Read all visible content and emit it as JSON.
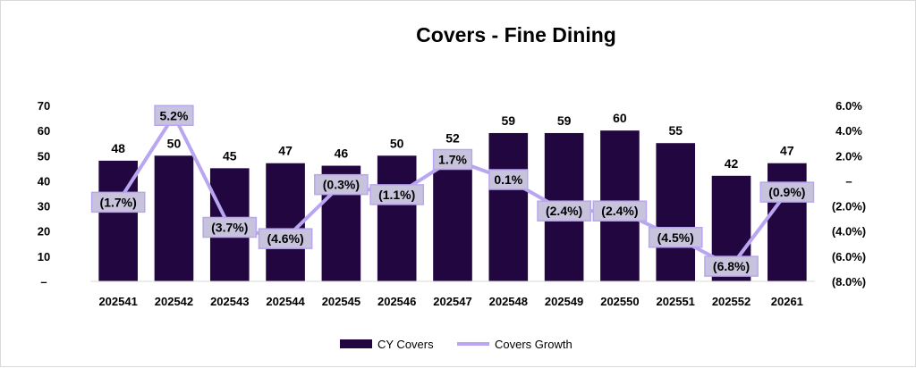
{
  "chart_data": {
    "type": "bar",
    "title": "Covers - Fine Dining",
    "categories": [
      "202541",
      "202542",
      "202543",
      "202544",
      "202545",
      "202546",
      "202547",
      "202548",
      "202549",
      "202550",
      "202551",
      "202552",
      "20261"
    ],
    "series": [
      {
        "name": "CY Covers",
        "type": "bar",
        "axis": "left",
        "color": "#22063f",
        "values": [
          48,
          50,
          45,
          47,
          46,
          50,
          52,
          59,
          59,
          60,
          55,
          42,
          47
        ],
        "labels": [
          "48",
          "50",
          "45",
          "47",
          "46",
          "50",
          "52",
          "59",
          "59",
          "60",
          "55",
          "42",
          "47"
        ]
      },
      {
        "name": "Covers Growth",
        "type": "line",
        "axis": "right",
        "color": "#b9a6f0",
        "label_bg": "#c8c3dc",
        "values": [
          -1.7,
          5.2,
          -3.7,
          -4.6,
          -0.3,
          -1.1,
          1.7,
          0.1,
          -2.4,
          -2.4,
          -4.5,
          -6.8,
          -0.9
        ],
        "labels": [
          "(1.7%)",
          "5.2%",
          "(3.7%)",
          "(4.6%)",
          "(0.3%)",
          "(1.1%)",
          "1.7%",
          "0.1%",
          "(2.4%)",
          "(2.4%)",
          "(4.5%)",
          "(6.8%)",
          "(0.9%)"
        ]
      }
    ],
    "y_left": {
      "ylim": [
        0,
        70
      ],
      "ticks": [
        0,
        10,
        20,
        30,
        40,
        50,
        60,
        70
      ],
      "tick_labels": [
        "–",
        "10",
        "20",
        "30",
        "40",
        "50",
        "60",
        "70"
      ]
    },
    "y_right": {
      "ylim": [
        -8,
        6
      ],
      "ticks": [
        -8,
        -6,
        -4,
        -2,
        0,
        2,
        4,
        6
      ],
      "tick_labels": [
        "(8.0%)",
        "(6.0%)",
        "(4.0%)",
        "(2.0%)",
        "–",
        "2.0%",
        "4.0%",
        "6.0%"
      ]
    },
    "grid": false,
    "legend": {
      "placement": "bottom-center",
      "entries": [
        "CY Covers",
        "Covers Growth"
      ]
    }
  }
}
